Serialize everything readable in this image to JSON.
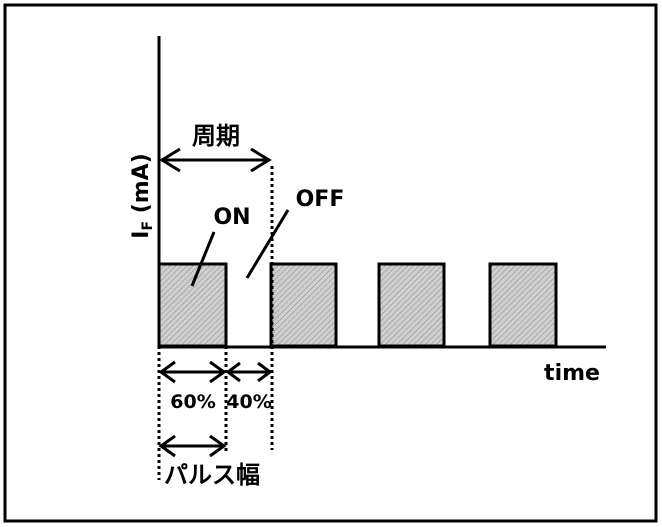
{
  "diagram": {
    "y_axis_label_main": "I",
    "y_axis_label_sub": "F",
    "y_axis_label_unit": " (mA)",
    "x_axis_label": "time",
    "period_label": "周期",
    "on_label": "ON",
    "off_label": "OFF",
    "on_ratio_label": "60%",
    "off_ratio_label": "40%",
    "pulse_width_label": "パルス幅"
  },
  "colors": {
    "line": "#000000",
    "pulse_fill": "#c8c8c8",
    "hatch": "#8a8a8a",
    "background": "#ffffff"
  }
}
